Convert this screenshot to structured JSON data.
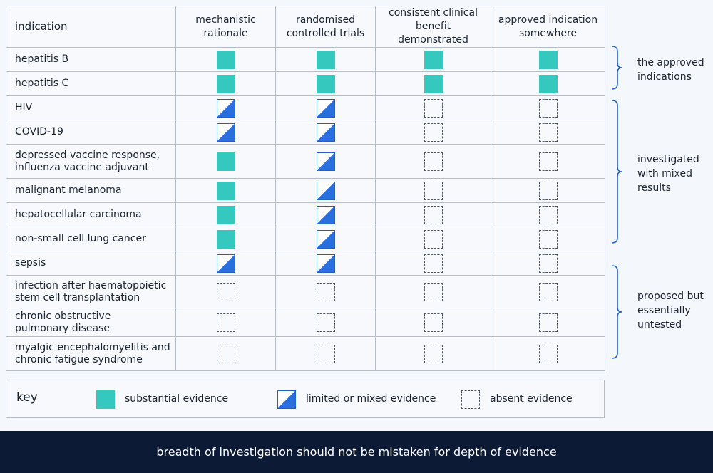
{
  "columns": {
    "indication": "indication",
    "c1": "mechanistic\nrationale",
    "c2": "randomised\ncontrolled trials",
    "c3": "consistent clinical\nbenefit demonstrated",
    "c4": "approved indication\nsomewhere"
  },
  "rows": [
    {
      "label": "hepatitis B",
      "cells": [
        "substantial",
        "substantial",
        "substantial",
        "substantial"
      ]
    },
    {
      "label": "hepatitis C",
      "cells": [
        "substantial",
        "substantial",
        "substantial",
        "substantial"
      ]
    },
    {
      "label": "HIV",
      "cells": [
        "limited",
        "limited",
        "absent",
        "absent"
      ]
    },
    {
      "label": "COVID-19",
      "cells": [
        "limited",
        "limited",
        "absent",
        "absent"
      ]
    },
    {
      "label": "depressed vaccine response,\ninfluenza vaccine adjuvant",
      "cells": [
        "substantial",
        "limited",
        "absent",
        "absent"
      ]
    },
    {
      "label": "malignant melanoma",
      "cells": [
        "substantial",
        "limited",
        "absent",
        "absent"
      ]
    },
    {
      "label": "hepatocellular carcinoma",
      "cells": [
        "substantial",
        "limited",
        "absent",
        "absent"
      ]
    },
    {
      "label": "non-small cell lung cancer",
      "cells": [
        "substantial",
        "limited",
        "absent",
        "absent"
      ]
    },
    {
      "label": "sepsis",
      "cells": [
        "limited",
        "limited",
        "absent",
        "absent"
      ]
    },
    {
      "label": "infection after haematopoietic\nstem cell transplantation",
      "cells": [
        "absent",
        "absent",
        "absent",
        "absent"
      ]
    },
    {
      "label": "chronic obstructive\npulmonary disease",
      "cells": [
        "absent",
        "absent",
        "absent",
        "absent"
      ]
    },
    {
      "label": "myalgic encephalomyelitis and\nchronic fatigue syndrome",
      "cells": [
        "absent",
        "absent",
        "absent",
        "absent"
      ]
    }
  ],
  "groups": [
    {
      "label": "the approved\nindications"
    },
    {
      "label": "investigated\nwith mixed\nresults"
    },
    {
      "label": "proposed but\nessentially\nuntested"
    }
  ],
  "key": {
    "title": "key",
    "substantial": "substantial evidence",
    "limited": "limited or mixed evidence",
    "absent": "absent evidence"
  },
  "footer": "breadth of investigation should not be mistaken for depth of evidence",
  "colors": {
    "substantial": "#34c8bf",
    "limited": "#2a6fde",
    "absent_border": "#4b5566",
    "footer_bg": "#0c1a36",
    "brace": "#1f5fc6"
  }
}
